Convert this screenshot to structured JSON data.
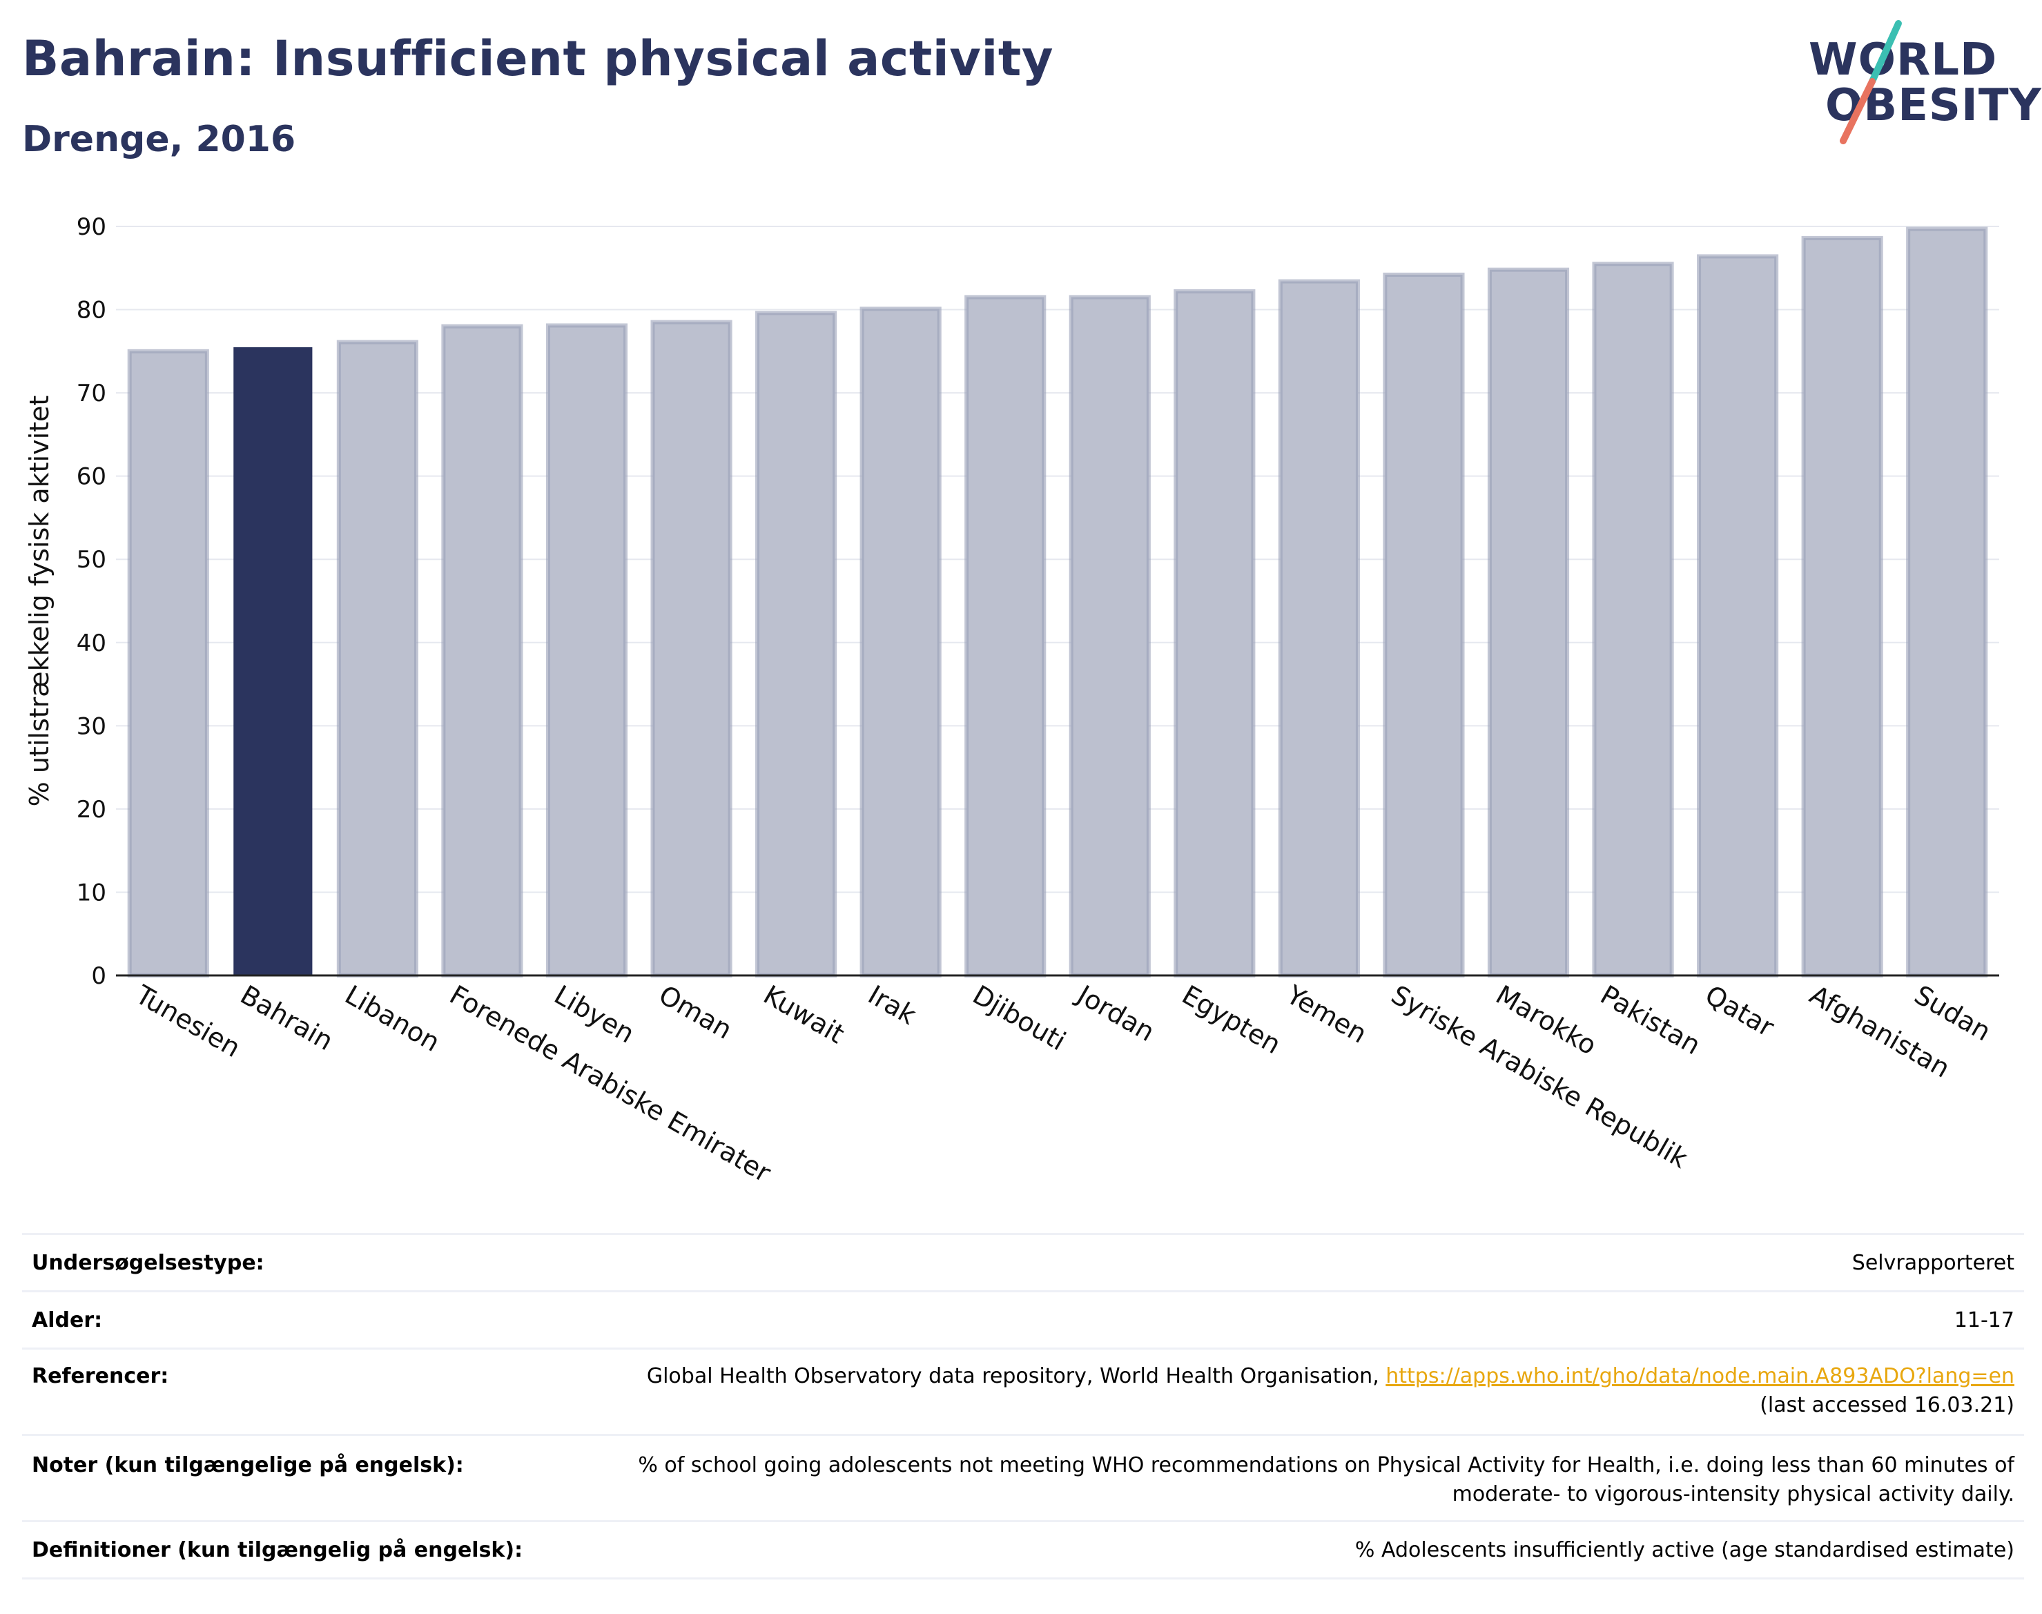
{
  "header": {
    "title": "Bahrain: Insufficient physical activity",
    "subtitle": "Drenge, 2016"
  },
  "logo": {
    "line1": "WORLD",
    "line2": "OBESITY"
  },
  "colors": {
    "highlight": "#2b345e",
    "bar": "#bcc0cf",
    "bar_stroke": "#9aa0b8",
    "logo_teal": "#3bbfb2",
    "logo_coral": "#e8735f",
    "link": "#e8a70f"
  },
  "chart_data": {
    "type": "bar",
    "ylabel": "% utilstrækkelig fysisk aktivitet",
    "ylim": [
      0,
      90
    ],
    "yticks": [
      0,
      10,
      20,
      30,
      40,
      50,
      60,
      70,
      80,
      90
    ],
    "grid": true,
    "highlight": "Bahrain",
    "categories": [
      "Tunesien",
      "Bahrain",
      "Libanon",
      "Forenede Arabiske Emirater",
      "Libyen",
      "Oman",
      "Kuwait",
      "Irak",
      "Djibouti",
      "Jordan",
      "Egypten",
      "Yemen",
      "Syriske Arabiske Republik",
      "Marokko",
      "Pakistan",
      "Qatar",
      "Afghanistan",
      "Sudan"
    ],
    "values": [
      75.0,
      75.4,
      76.1,
      78.0,
      78.1,
      78.5,
      79.6,
      80.1,
      81.5,
      81.5,
      82.2,
      83.4,
      84.2,
      84.8,
      85.5,
      86.4,
      88.6,
      89.7
    ]
  },
  "info": [
    {
      "label": "Undersøgelsestype:",
      "value": "Selvrapporteret"
    },
    {
      "label": "Alder:",
      "value": "11-17"
    },
    {
      "label": "Referencer:",
      "value": "Global Health Observatory data repository, World Health Organisation, ",
      "link": "https://apps.who.int/gho/data/node.main.A893ADO?lang=en",
      "value2": "(last accessed 16.03.21)"
    },
    {
      "label": "Noter (kun tilgængelige på engelsk):",
      "value": "% of school going adolescents not meeting WHO recommendations on Physical Activity for Health, i.e. doing less than 60 minutes of",
      "value2": "moderate- to vigorous-intensity physical activity daily."
    },
    {
      "label": "Definitioner (kun tilgængelig på engelsk):",
      "value": "% Adolescents insufficiently active (age standardised estimate)"
    }
  ]
}
